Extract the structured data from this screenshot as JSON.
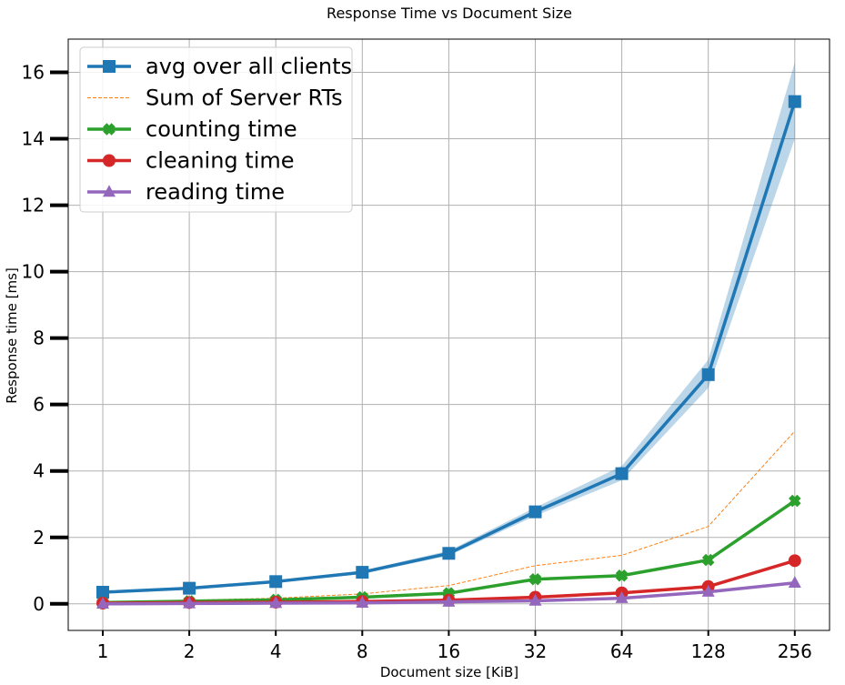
{
  "chart_data": {
    "type": "line",
    "title": "Response Time vs Document Size",
    "xlabel": "Document size [KiB]",
    "ylabel": "Response time [ms]",
    "categories": [
      "1",
      "2",
      "4",
      "8",
      "16",
      "32",
      "64",
      "128",
      "256"
    ],
    "ylim": [
      -0.8,
      17.0
    ],
    "yticks": [
      0,
      2,
      4,
      6,
      8,
      10,
      12,
      14,
      16
    ],
    "grid": true,
    "legend_position": "top-left",
    "series": [
      {
        "name": "avg over all clients",
        "marker": "square",
        "color": "#1f77b4",
        "style": "solid",
        "values": [
          0.35,
          0.47,
          0.67,
          0.95,
          1.52,
          2.77,
          3.92,
          6.9,
          15.12
        ],
        "band_lower": [
          0.32,
          0.43,
          0.63,
          0.9,
          1.45,
          2.65,
          3.72,
          6.5,
          14.0
        ],
        "band_upper": [
          0.38,
          0.51,
          0.71,
          1.0,
          1.6,
          2.9,
          4.15,
          7.35,
          16.3
        ]
      },
      {
        "name": "Sum of Server RTs",
        "marker": "none",
        "color": "#ff7f0e",
        "style": "dashed",
        "values": [
          0.05,
          0.11,
          0.17,
          0.3,
          0.55,
          1.15,
          1.46,
          2.33,
          5.2
        ]
      },
      {
        "name": "counting time",
        "marker": "x",
        "color": "#2ca02c",
        "style": "solid",
        "values": [
          0.04,
          0.08,
          0.12,
          0.2,
          0.32,
          0.74,
          0.85,
          1.32,
          3.1
        ]
      },
      {
        "name": "cleaning time",
        "marker": "circle",
        "color": "#d62728",
        "style": "solid",
        "values": [
          0.02,
          0.04,
          0.05,
          0.07,
          0.11,
          0.2,
          0.33,
          0.52,
          1.3
        ]
      },
      {
        "name": "reading time",
        "marker": "triangle",
        "color": "#9467bd",
        "style": "solid",
        "values": [
          0.0,
          0.01,
          0.02,
          0.03,
          0.06,
          0.09,
          0.17,
          0.36,
          0.63
        ]
      }
    ]
  }
}
